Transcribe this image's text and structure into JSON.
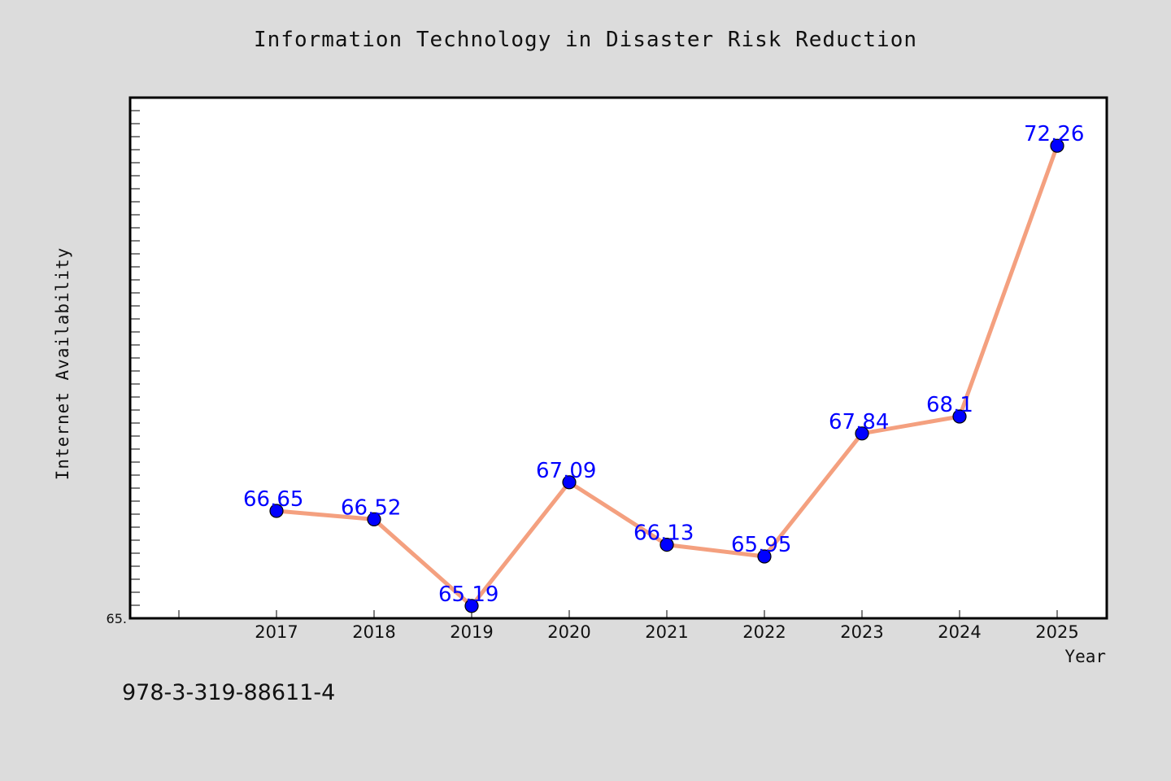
{
  "chart_data": {
    "type": "line",
    "title": "Information Technology in Disaster Risk Reduction",
    "xlabel": "Year",
    "ylabel": "Internet Availability",
    "x": [
      "2017",
      "2018",
      "2019",
      "2020",
      "2021",
      "2022",
      "2023",
      "2024",
      "2025"
    ],
    "values": [
      66.65,
      66.52,
      65.19,
      67.09,
      66.13,
      65.95,
      67.84,
      68.1,
      72.26
    ],
    "data_labels": [
      "66.65",
      "66.52",
      "65.19",
      "67.09",
      "66.13",
      "65.95",
      "67.84",
      "68.1",
      "72.26"
    ],
    "ylim": [
      65.0,
      73.0
    ],
    "y_min_label": "65.",
    "grid": false,
    "legend": "none",
    "colors": {
      "line": "#f4a07f",
      "marker": "#0000ff",
      "label": "#0000ff",
      "background": "#dcdcdc",
      "plot_background": "#ffffff"
    }
  },
  "footer": {
    "isbn": "978-3-319-88611-4"
  }
}
